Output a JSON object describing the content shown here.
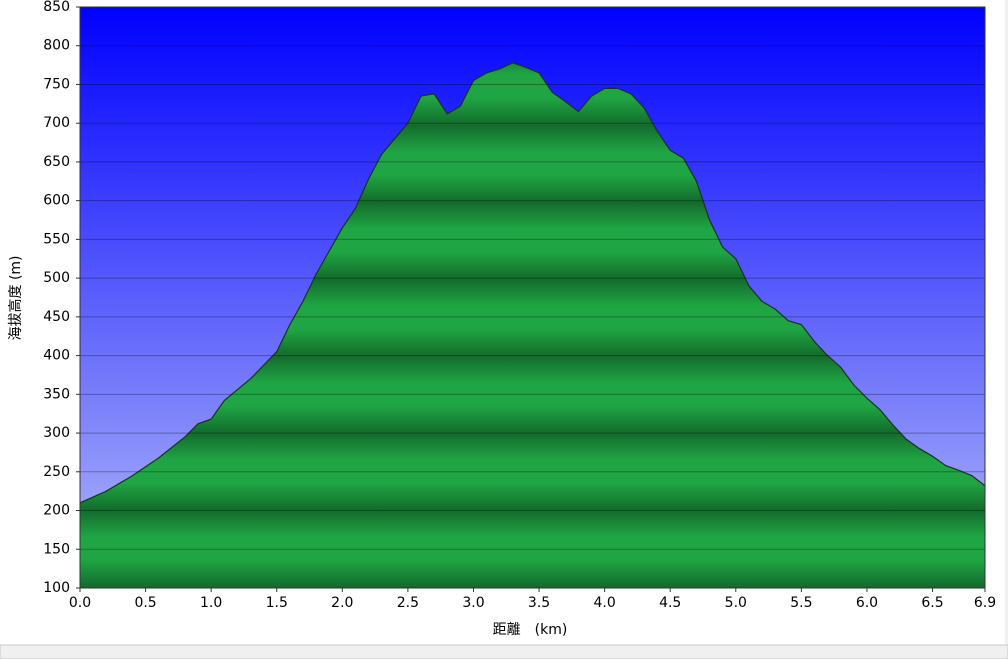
{
  "chart_data": {
    "type": "area",
    "x_label": "距離　(km)",
    "y_label": "海拔高度 (m)",
    "color": "#1fa544",
    "x": [
      0.0,
      0.2,
      0.4,
      0.6,
      0.8,
      0.9,
      1.0,
      1.1,
      1.3,
      1.5,
      1.6,
      1.7,
      1.8,
      1.9,
      2.0,
      2.1,
      2.2,
      2.3,
      2.4,
      2.5,
      2.6,
      2.7,
      2.8,
      2.9,
      3.0,
      3.1,
      3.2,
      3.3,
      3.4,
      3.5,
      3.6,
      3.7,
      3.8,
      3.9,
      4.0,
      4.1,
      4.2,
      4.3,
      4.4,
      4.5,
      4.6,
      4.7,
      4.8,
      4.9,
      5.0,
      5.1,
      5.2,
      5.3,
      5.4,
      5.5,
      5.6,
      5.7,
      5.8,
      5.9,
      6.0,
      6.1,
      6.2,
      6.3,
      6.4,
      6.5,
      6.6,
      6.7,
      6.8,
      6.9
    ],
    "values": [
      210,
      225,
      245,
      268,
      295,
      312,
      318,
      342,
      370,
      405,
      440,
      470,
      505,
      535,
      565,
      590,
      628,
      660,
      680,
      700,
      735,
      738,
      712,
      722,
      755,
      765,
      770,
      778,
      772,
      765,
      740,
      728,
      715,
      735,
      745,
      745,
      738,
      720,
      690,
      665,
      655,
      625,
      575,
      540,
      525,
      490,
      470,
      460,
      445,
      440,
      418,
      400,
      385,
      362,
      345,
      330,
      310,
      292,
      280,
      270,
      258,
      252,
      245,
      232
    ],
    "xlim": [
      0,
      6.9
    ],
    "xticks": [
      {
        "value": 0,
        "label": "0.0"
      },
      0.5,
      {
        "value": 1,
        "label": "1.0"
      },
      1.5,
      {
        "value": 2,
        "label": "2.0"
      },
      2.5,
      {
        "value": 3,
        "label": "3.0"
      },
      3.5,
      {
        "value": 4,
        "label": "4.0"
      },
      4.5,
      {
        "value": 5,
        "label": "5.0"
      },
      5.5,
      {
        "value": 6,
        "label": "6.0"
      },
      6.5,
      6.9
    ],
    "ylim": [
      100,
      850
    ],
    "yticks": [
      100,
      150,
      200,
      250,
      300,
      350,
      400,
      450,
      500,
      550,
      600,
      650,
      700,
      750,
      800,
      850
    ],
    "grid": true
  }
}
